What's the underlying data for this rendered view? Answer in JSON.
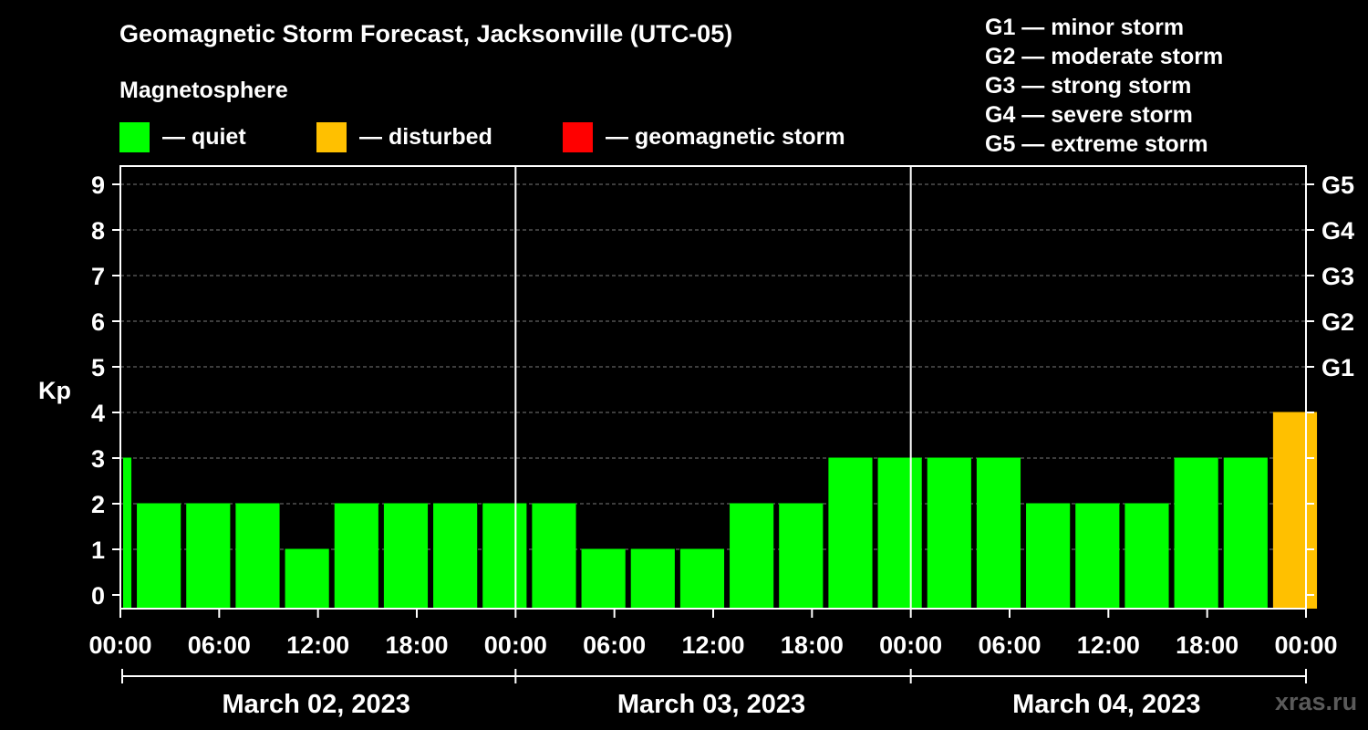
{
  "title": "Geomagnetic Storm Forecast, Jacksonville (UTC-05)",
  "subtitle": "Magnetosphere",
  "legend": [
    {
      "label": "— quiet",
      "color": "#00ff00"
    },
    {
      "label": "— disturbed",
      "color": "#ffc000"
    },
    {
      "label": "— geomagnetic storm",
      "color": "#ff0000"
    }
  ],
  "storm_scale": [
    "G1 — minor storm",
    "G2 — moderate storm",
    "G3 — strong storm",
    "G4 — severe storm",
    "G5 — extreme storm"
  ],
  "watermark": "xras.ru",
  "chart_data": {
    "type": "bar",
    "ylabel": "Kp",
    "ylim": [
      0,
      9
    ],
    "yticks": [
      "0",
      "1",
      "2",
      "3",
      "4",
      "5",
      "6",
      "7",
      "8",
      "9"
    ],
    "right_ticks": [
      {
        "kp": 5,
        "label": "G1"
      },
      {
        "kp": 6,
        "label": "G2"
      },
      {
        "kp": 7,
        "label": "G3"
      },
      {
        "kp": 8,
        "label": "G4"
      },
      {
        "kp": 9,
        "label": "G5"
      }
    ],
    "xlim_hours": [
      0,
      72
    ],
    "xtick_labels": [
      "00:00",
      "06:00",
      "12:00",
      "18:00",
      "00:00",
      "06:00",
      "12:00",
      "18:00",
      "00:00",
      "06:00",
      "12:00",
      "18:00",
      "00:00"
    ],
    "dates": [
      "March 02, 2023",
      "March 03, 2023",
      "March 04, 2023"
    ],
    "grid": true,
    "bars": [
      {
        "start": -2,
        "kp": 3,
        "status": "quiet"
      },
      {
        "start": 1,
        "kp": 2,
        "status": "quiet"
      },
      {
        "start": 4,
        "kp": 2,
        "status": "quiet"
      },
      {
        "start": 7,
        "kp": 2,
        "status": "quiet"
      },
      {
        "start": 10,
        "kp": 1,
        "status": "quiet"
      },
      {
        "start": 13,
        "kp": 2,
        "status": "quiet"
      },
      {
        "start": 16,
        "kp": 2,
        "status": "quiet"
      },
      {
        "start": 19,
        "kp": 2,
        "status": "quiet"
      },
      {
        "start": 22,
        "kp": 2,
        "status": "quiet"
      },
      {
        "start": 25,
        "kp": 2,
        "status": "quiet"
      },
      {
        "start": 28,
        "kp": 1,
        "status": "quiet"
      },
      {
        "start": 31,
        "kp": 1,
        "status": "quiet"
      },
      {
        "start": 34,
        "kp": 1,
        "status": "quiet"
      },
      {
        "start": 37,
        "kp": 2,
        "status": "quiet"
      },
      {
        "start": 40,
        "kp": 2,
        "status": "quiet"
      },
      {
        "start": 43,
        "kp": 3,
        "status": "quiet"
      },
      {
        "start": 46,
        "kp": 3,
        "status": "quiet"
      },
      {
        "start": 49,
        "kp": 3,
        "status": "quiet"
      },
      {
        "start": 52,
        "kp": 3,
        "status": "quiet"
      },
      {
        "start": 55,
        "kp": 2,
        "status": "quiet"
      },
      {
        "start": 58,
        "kp": 2,
        "status": "quiet"
      },
      {
        "start": 61,
        "kp": 2,
        "status": "quiet"
      },
      {
        "start": 64,
        "kp": 3,
        "status": "quiet"
      },
      {
        "start": 67,
        "kp": 3,
        "status": "quiet"
      },
      {
        "start": 70,
        "kp": 4,
        "status": "disturbed"
      }
    ]
  }
}
